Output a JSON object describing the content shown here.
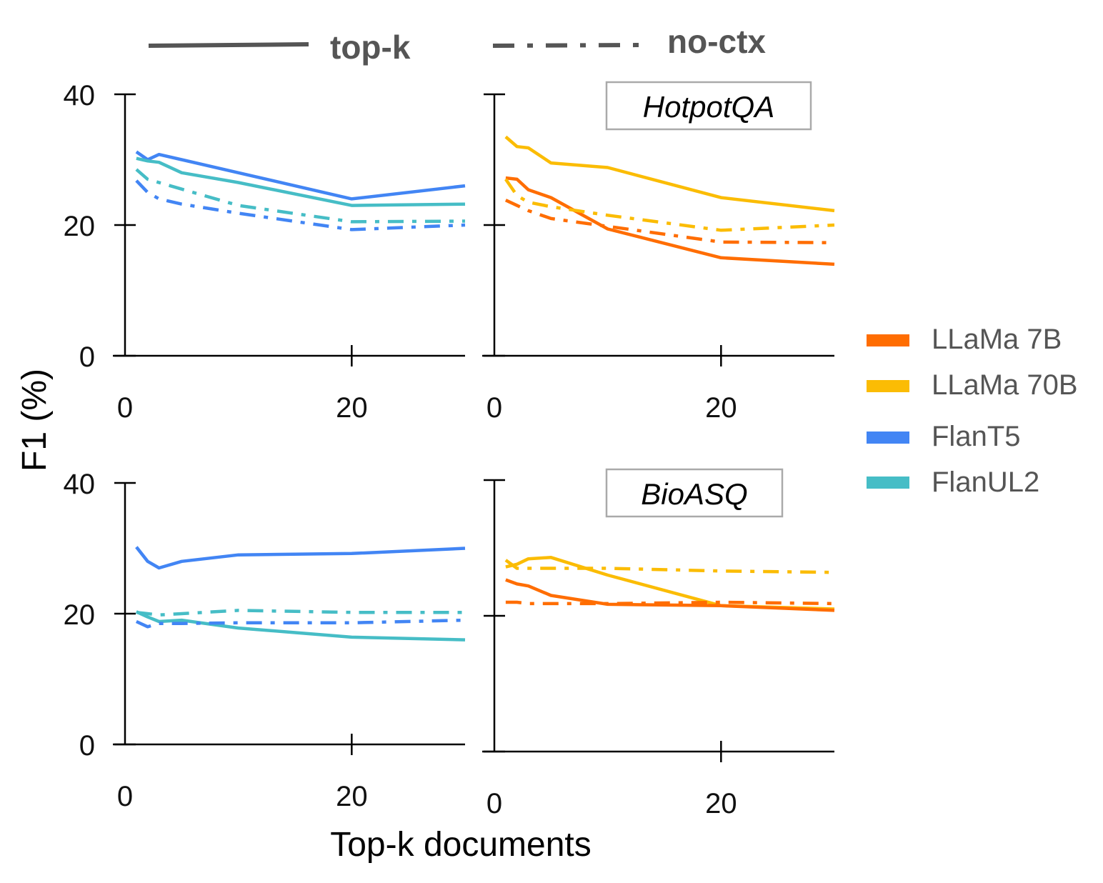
{
  "figure": {
    "ylabel": "F1 (%)",
    "xlabel": "Top-k documents",
    "line_styles": [
      {
        "label": "top-k",
        "dash": "solid"
      },
      {
        "label": "no-ctx",
        "dash": "dashdot"
      }
    ],
    "legend": [
      {
        "label": "LLaMa 7B",
        "color": "#ff6d01"
      },
      {
        "label": "LLaMa 70B",
        "color": "#fbbc04"
      },
      {
        "label": "FlanT5",
        "color": "#4285f4"
      },
      {
        "label": "FlanUL2",
        "color": "#46bdc6"
      }
    ],
    "legend_placement": "right"
  },
  "chart_data": [
    {
      "type": "line",
      "panel": "top-left",
      "label": "",
      "xlim": [
        0,
        30
      ],
      "ylim": [
        0,
        40
      ],
      "xticks": [
        "0",
        "20"
      ],
      "yticks": [
        "0",
        "20",
        "40"
      ],
      "series": [
        {
          "name": "FlanT5",
          "style": "top-k",
          "color": "#4285f4",
          "x": [
            1,
            2,
            3,
            5,
            10,
            20,
            30
          ],
          "y": [
            31.2,
            30,
            30.8,
            30,
            28,
            24,
            26
          ]
        },
        {
          "name": "FlanUL2",
          "style": "top-k",
          "color": "#46bdc6",
          "x": [
            1,
            2,
            3,
            5,
            10,
            20,
            30
          ],
          "y": [
            30.2,
            29.8,
            29.6,
            28,
            26.5,
            23,
            23.2
          ]
        },
        {
          "name": "FlanT5",
          "style": "no-ctx",
          "color": "#4285f4",
          "x": [
            1,
            2,
            3,
            5,
            10,
            20,
            30
          ],
          "y": [
            26.8,
            25,
            24,
            23.2,
            21.8,
            19.3,
            20
          ]
        },
        {
          "name": "FlanUL2",
          "style": "no-ctx",
          "color": "#46bdc6",
          "x": [
            1,
            2,
            3,
            5,
            10,
            20,
            30
          ],
          "y": [
            28.5,
            27,
            26.5,
            25.5,
            23,
            20.5,
            20.6
          ]
        }
      ]
    },
    {
      "type": "line",
      "panel": "top-right",
      "label": "HotpotQA",
      "xlim": [
        0,
        30
      ],
      "ylim": [
        0,
        40
      ],
      "xticks": [
        "0",
        "20"
      ],
      "yticks": [],
      "series": [
        {
          "name": "LLaMa 70B",
          "style": "top-k",
          "color": "#fbbc04",
          "x": [
            1,
            2,
            3,
            5,
            10,
            20,
            30
          ],
          "y": [
            33.5,
            32,
            31.8,
            29.5,
            28.8,
            24.2,
            22.2
          ]
        },
        {
          "name": "LLaMa 7B",
          "style": "top-k",
          "color": "#ff6d01",
          "x": [
            1,
            2,
            3,
            5,
            10,
            20,
            30
          ],
          "y": [
            27.2,
            27,
            25.4,
            24.2,
            19.4,
            15,
            14
          ]
        },
        {
          "name": "LLaMa 70B",
          "style": "no-ctx",
          "color": "#fbbc04",
          "x": [
            1,
            2,
            3,
            5,
            10,
            20,
            30
          ],
          "y": [
            27,
            24.5,
            23.5,
            22.8,
            21.5,
            19.2,
            20
          ]
        },
        {
          "name": "LLaMa 7B",
          "style": "no-ctx",
          "color": "#ff6d01",
          "x": [
            1,
            2,
            3,
            5,
            10,
            20,
            30
          ],
          "y": [
            23.8,
            23,
            22.2,
            21,
            19.8,
            17.4,
            17.3
          ]
        }
      ]
    },
    {
      "type": "line",
      "panel": "bottom-left",
      "label": "",
      "xlim": [
        0,
        30
      ],
      "ylim": [
        0,
        40
      ],
      "xticks": [
        "0",
        "20"
      ],
      "yticks": [
        "0",
        "20",
        "40"
      ],
      "series": [
        {
          "name": "FlanT5",
          "style": "top-k",
          "color": "#4285f4",
          "x": [
            1,
            2,
            3,
            5,
            10,
            20,
            30
          ],
          "y": [
            30.2,
            28,
            27,
            28,
            29,
            29.2,
            30
          ]
        },
        {
          "name": "FlanUL2",
          "style": "top-k",
          "color": "#46bdc6",
          "x": [
            1,
            2,
            3,
            5,
            10,
            20,
            30
          ],
          "y": [
            20.3,
            19.5,
            18.8,
            19,
            17.8,
            16.4,
            16
          ]
        },
        {
          "name": "FlanT5",
          "style": "no-ctx",
          "color": "#4285f4",
          "x": [
            1,
            2,
            3,
            5,
            10,
            20,
            30
          ],
          "y": [
            18.8,
            18,
            18.5,
            18.5,
            18.6,
            18.6,
            19
          ]
        },
        {
          "name": "FlanUL2",
          "style": "no-ctx",
          "color": "#46bdc6",
          "x": [
            1,
            2,
            3,
            5,
            10,
            20,
            30
          ],
          "y": [
            20.2,
            20,
            19.8,
            20,
            20.5,
            20.2,
            20.2
          ]
        }
      ]
    },
    {
      "type": "line",
      "panel": "bottom-right",
      "label": "BioASQ",
      "xlim": [
        0,
        30
      ],
      "ylim": [
        0,
        40
      ],
      "xticks": [
        "0",
        "20"
      ],
      "yticks": [],
      "series": [
        {
          "name": "LLaMa 70B",
          "style": "top-k",
          "color": "#fbbc04",
          "x": [
            1,
            2,
            3,
            5,
            10,
            20,
            30
          ],
          "y": [
            27.2,
            27.6,
            28.4,
            28.6,
            26,
            21.5,
            21
          ]
        },
        {
          "name": "LLaMa 7B",
          "style": "top-k",
          "color": "#ff6d01",
          "x": [
            1,
            2,
            3,
            5,
            10,
            20,
            30
          ],
          "y": [
            25.3,
            24.7,
            24.4,
            23,
            21.7,
            21.5,
            20.8
          ]
        },
        {
          "name": "LLaMa 70B",
          "style": "no-ctx",
          "color": "#fbbc04",
          "x": [
            1,
            2,
            3,
            5,
            10,
            20,
            30
          ],
          "y": [
            28.2,
            27,
            27,
            27,
            27,
            26.6,
            26.4
          ]
        },
        {
          "name": "LLaMa 7B",
          "style": "no-ctx",
          "color": "#ff6d01",
          "x": [
            1,
            2,
            3,
            5,
            10,
            20,
            30
          ],
          "y": [
            22,
            22,
            21.8,
            21.8,
            21.8,
            22,
            21.8
          ]
        }
      ]
    }
  ]
}
